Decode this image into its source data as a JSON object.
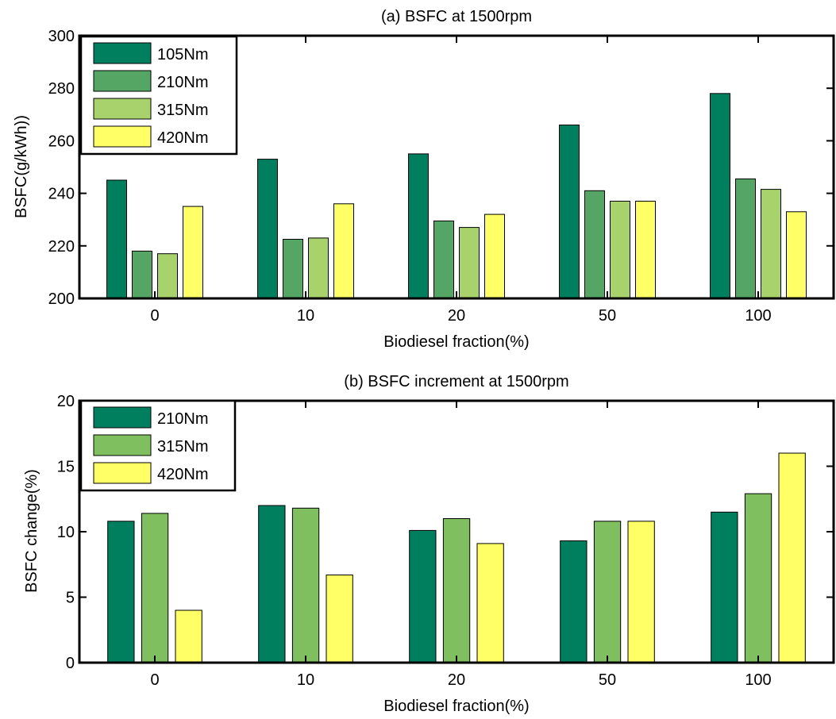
{
  "chart_data": [
    {
      "type": "bar",
      "title": "(a) BSFC at 1500rpm",
      "xlabel": "Biodiesel fraction(%)",
      "ylabel": "BSFC(g/kWh))",
      "ylim": [
        200,
        300
      ],
      "yticks": [
        200,
        220,
        240,
        260,
        280,
        300
      ],
      "categories": [
        "0",
        "10",
        "20",
        "50",
        "100"
      ],
      "legend_position": "top-left",
      "grid": false,
      "series": [
        {
          "name": "105Nm",
          "color": "#007f5f",
          "values": [
            245,
            253,
            255,
            266,
            278
          ]
        },
        {
          "name": "210Nm",
          "color": "#55a665",
          "values": [
            218,
            222.5,
            229.5,
            241,
            245.5
          ]
        },
        {
          "name": "315Nm",
          "color": "#a8d26b",
          "values": [
            217,
            223,
            227,
            237,
            241.5
          ]
        },
        {
          "name": "420Nm",
          "color": "#ffff66",
          "values": [
            235,
            236,
            232,
            237,
            233
          ]
        }
      ]
    },
    {
      "type": "bar",
      "title": "(b) BSFC increment at 1500rpm",
      "xlabel": "Biodiesel fraction(%)",
      "ylabel": "BSFC change(%)",
      "ylim": [
        0,
        20
      ],
      "yticks": [
        0,
        5,
        10,
        15,
        20
      ],
      "categories": [
        "0",
        "10",
        "20",
        "50",
        "100"
      ],
      "legend_position": "top-left",
      "grid": false,
      "series": [
        {
          "name": "210Nm",
          "color": "#007f5f",
          "values": [
            10.8,
            12.0,
            10.1,
            9.3,
            11.5
          ]
        },
        {
          "name": "315Nm",
          "color": "#7fbf5f",
          "values": [
            11.4,
            11.8,
            11.0,
            10.8,
            12.9
          ]
        },
        {
          "name": "420Nm",
          "color": "#ffff66",
          "values": [
            4.0,
            6.7,
            9.1,
            10.8,
            16.0
          ]
        }
      ]
    }
  ]
}
